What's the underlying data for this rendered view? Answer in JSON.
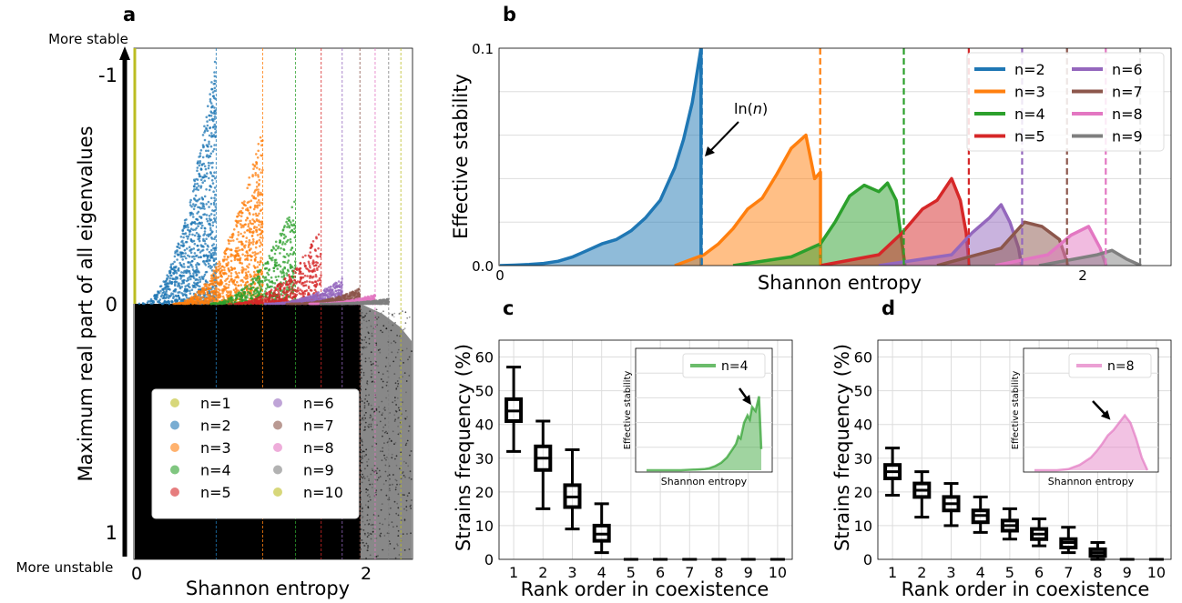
{
  "panel_labels": {
    "a": "a",
    "b": "b",
    "c": "c",
    "d": "d"
  },
  "colors": {
    "n1": "#bcbd22",
    "n2": "#1f77b4",
    "n3": "#ff7f0e",
    "n4": "#2ca02c",
    "n5": "#d62728",
    "n6": "#9467bd",
    "n7": "#8c564b",
    "n8": "#e377c2",
    "n9": "#7f7f7f",
    "n10": "#bcbd22"
  },
  "panel_a": {
    "more_stable": "More stable",
    "more_unstable": "More unstable",
    "ylabel": "Maximum real part of all eigenvalues",
    "xlabel": "Shannon entropy",
    "yticks": [
      "-1",
      "0",
      "1"
    ],
    "xticks": [
      "0",
      "2"
    ],
    "legend": [
      "n=1",
      "n=2",
      "n=3",
      "n=4",
      "n=5",
      "n=6",
      "n=7",
      "n=8",
      "n=9",
      "n=10"
    ]
  },
  "chart_data": [
    {
      "panel": "b",
      "type": "area",
      "xlabel": "Shannon entropy",
      "ylabel": "Effective stability",
      "xticks": [
        "0",
        "2"
      ],
      "yticks": [
        "0.0",
        "0.1"
      ],
      "xlim": [
        0,
        2.45
      ],
      "ylim": [
        0,
        0.1
      ],
      "annotation": {
        "text_plain": "ln(",
        "text_italic": "n",
        "text_close": ")",
        "x": 0.69
      },
      "vlines": [
        {
          "name": "n=2",
          "x": 0.693
        },
        {
          "name": "n=3",
          "x": 1.099
        },
        {
          "name": "n=4",
          "x": 1.386
        },
        {
          "name": "n=5",
          "x": 1.609
        },
        {
          "name": "n=6",
          "x": 1.792
        },
        {
          "name": "n=7",
          "x": 1.946
        },
        {
          "name": "n=8",
          "x": 2.079
        },
        {
          "name": "n=9",
          "x": 2.197
        }
      ],
      "series": [
        {
          "name": "n=2",
          "x": [
            0.0,
            0.05,
            0.1,
            0.15,
            0.2,
            0.25,
            0.3,
            0.35,
            0.4,
            0.45,
            0.5,
            0.55,
            0.6,
            0.63,
            0.66,
            0.69,
            0.69
          ],
          "y": [
            0.0,
            0.0002,
            0.0005,
            0.001,
            0.002,
            0.004,
            0.007,
            0.01,
            0.012,
            0.016,
            0.022,
            0.03,
            0.045,
            0.058,
            0.075,
            0.1,
            0.0
          ]
        },
        {
          "name": "n=3",
          "x": [
            0.6,
            0.7,
            0.75,
            0.8,
            0.85,
            0.9,
            0.95,
            1.0,
            1.05,
            1.08,
            1.1,
            1.1
          ],
          "y": [
            0.0,
            0.005,
            0.01,
            0.017,
            0.026,
            0.031,
            0.042,
            0.054,
            0.06,
            0.04,
            0.043,
            0.0
          ]
        },
        {
          "name": "n=4",
          "x": [
            0.8,
            1.0,
            1.1,
            1.15,
            1.2,
            1.25,
            1.3,
            1.33,
            1.36,
            1.38,
            1.39
          ],
          "y": [
            0.0,
            0.004,
            0.01,
            0.02,
            0.032,
            0.037,
            0.034,
            0.038,
            0.03,
            0.01,
            0.0
          ]
        },
        {
          "name": "n=5",
          "x": [
            1.1,
            1.3,
            1.38,
            1.45,
            1.5,
            1.55,
            1.58,
            1.6,
            1.61
          ],
          "y": [
            0.0,
            0.005,
            0.015,
            0.026,
            0.03,
            0.04,
            0.03,
            0.015,
            0.0
          ]
        },
        {
          "name": "n=6",
          "x": [
            1.3,
            1.55,
            1.62,
            1.68,
            1.72,
            1.75,
            1.78,
            1.79
          ],
          "y": [
            0.0,
            0.005,
            0.015,
            0.022,
            0.028,
            0.02,
            0.008,
            0.0
          ]
        },
        {
          "name": "n=7",
          "x": [
            1.5,
            1.72,
            1.8,
            1.86,
            1.92,
            1.95
          ],
          "y": [
            0.0,
            0.008,
            0.02,
            0.018,
            0.012,
            0.0
          ]
        },
        {
          "name": "n=8",
          "x": [
            1.7,
            1.88,
            1.96,
            2.02,
            2.06,
            2.08
          ],
          "y": [
            0.0,
            0.005,
            0.014,
            0.018,
            0.008,
            0.0
          ]
        },
        {
          "name": "n=9",
          "x": [
            1.85,
            2.05,
            2.1,
            2.15,
            2.2
          ],
          "y": [
            0.0,
            0.005,
            0.007,
            0.003,
            0.0
          ]
        }
      ]
    },
    {
      "panel": "c",
      "type": "box",
      "xlabel": "Rank order in coexistence",
      "ylabel": "Strains frequency (%)",
      "categories": [
        "1",
        "2",
        "3",
        "4",
        "5",
        "6",
        "7",
        "8",
        "9",
        "10"
      ],
      "yticks": [
        "0",
        "10",
        "20",
        "30",
        "40",
        "50",
        "60"
      ],
      "ylim": [
        0,
        65
      ],
      "boxes": [
        {
          "min": 32,
          "q1": 41,
          "median": 44,
          "q3": 47.5,
          "max": 57
        },
        {
          "min": 15,
          "q1": 26.5,
          "median": 30,
          "q3": 33.5,
          "max": 41
        },
        {
          "min": 9,
          "q1": 15.5,
          "median": 18.5,
          "q3": 22,
          "max": 32.5
        },
        {
          "min": 2,
          "q1": 5.5,
          "median": 7.5,
          "q3": 10,
          "max": 16.5
        },
        {
          "min": 0,
          "q1": 0,
          "median": 0,
          "q3": 0,
          "max": 0
        },
        {
          "min": 0,
          "q1": 0,
          "median": 0,
          "q3": 0,
          "max": 0
        },
        {
          "min": 0,
          "q1": 0,
          "median": 0,
          "q3": 0,
          "max": 0
        },
        {
          "min": 0,
          "q1": 0,
          "median": 0,
          "q3": 0,
          "max": 0
        },
        {
          "min": 0,
          "q1": 0,
          "median": 0,
          "q3": 0,
          "max": 0
        },
        {
          "min": 0,
          "q1": 0,
          "median": 0,
          "q3": 0,
          "max": 0
        }
      ],
      "inset": {
        "xlabel": "Shannon entropy",
        "ylabel": "Effective stability",
        "legend": "n=4",
        "x": [
          0,
          0.1,
          0.2,
          0.3,
          0.4,
          0.5,
          0.55,
          0.6,
          0.65,
          0.7,
          0.75,
          0.78,
          0.8,
          0.82,
          0.85,
          0.88,
          0.9,
          0.92,
          0.95,
          0.98,
          1.0
        ],
        "y": [
          0,
          0,
          0,
          0,
          0.005,
          0.01,
          0.02,
          0.04,
          0.07,
          0.12,
          0.2,
          0.25,
          0.32,
          0.3,
          0.45,
          0.52,
          0.48,
          0.6,
          0.56,
          0.7,
          0.2
        ]
      }
    },
    {
      "panel": "d",
      "type": "box",
      "xlabel": "Rank order in coexistence",
      "ylabel": "Strains frequency (%)",
      "categories": [
        "1",
        "2",
        "3",
        "4",
        "5",
        "6",
        "7",
        "8",
        "9",
        "10"
      ],
      "yticks": [
        "0",
        "10",
        "20",
        "30",
        "40",
        "50",
        "60"
      ],
      "ylim": [
        0,
        65
      ],
      "boxes": [
        {
          "min": 19,
          "q1": 24,
          "median": 26,
          "q3": 28,
          "max": 33
        },
        {
          "min": 12.5,
          "q1": 18.5,
          "median": 20.5,
          "q3": 22.5,
          "max": 26
        },
        {
          "min": 10,
          "q1": 14.5,
          "median": 16.5,
          "q3": 18.5,
          "max": 22.5
        },
        {
          "min": 8,
          "q1": 11,
          "median": 13,
          "q3": 14.5,
          "max": 18.5
        },
        {
          "min": 6,
          "q1": 8.5,
          "median": 10,
          "q3": 11.5,
          "max": 15
        },
        {
          "min": 4,
          "q1": 6,
          "median": 7.5,
          "q3": 9,
          "max": 12
        },
        {
          "min": 2,
          "q1": 3.5,
          "median": 5,
          "q3": 6,
          "max": 9.5
        },
        {
          "min": 0,
          "q1": 1,
          "median": 2,
          "q3": 3,
          "max": 5
        },
        {
          "min": 0,
          "q1": 0,
          "median": 0,
          "q3": 0,
          "max": 0
        },
        {
          "min": 0,
          "q1": 0,
          "median": 0,
          "q3": 0,
          "max": 0
        }
      ],
      "inset": {
        "xlabel": "Shannon entropy",
        "ylabel": "Effective stability",
        "legend": "n=8",
        "x": [
          0,
          0.2,
          0.3,
          0.4,
          0.5,
          0.55,
          0.6,
          0.65,
          0.7,
          0.75,
          0.8,
          0.85,
          0.9,
          0.95,
          1.0
        ],
        "y": [
          0,
          0,
          0.01,
          0.05,
          0.12,
          0.18,
          0.25,
          0.33,
          0.38,
          0.45,
          0.52,
          0.45,
          0.3,
          0.12,
          0.0
        ]
      }
    }
  ]
}
